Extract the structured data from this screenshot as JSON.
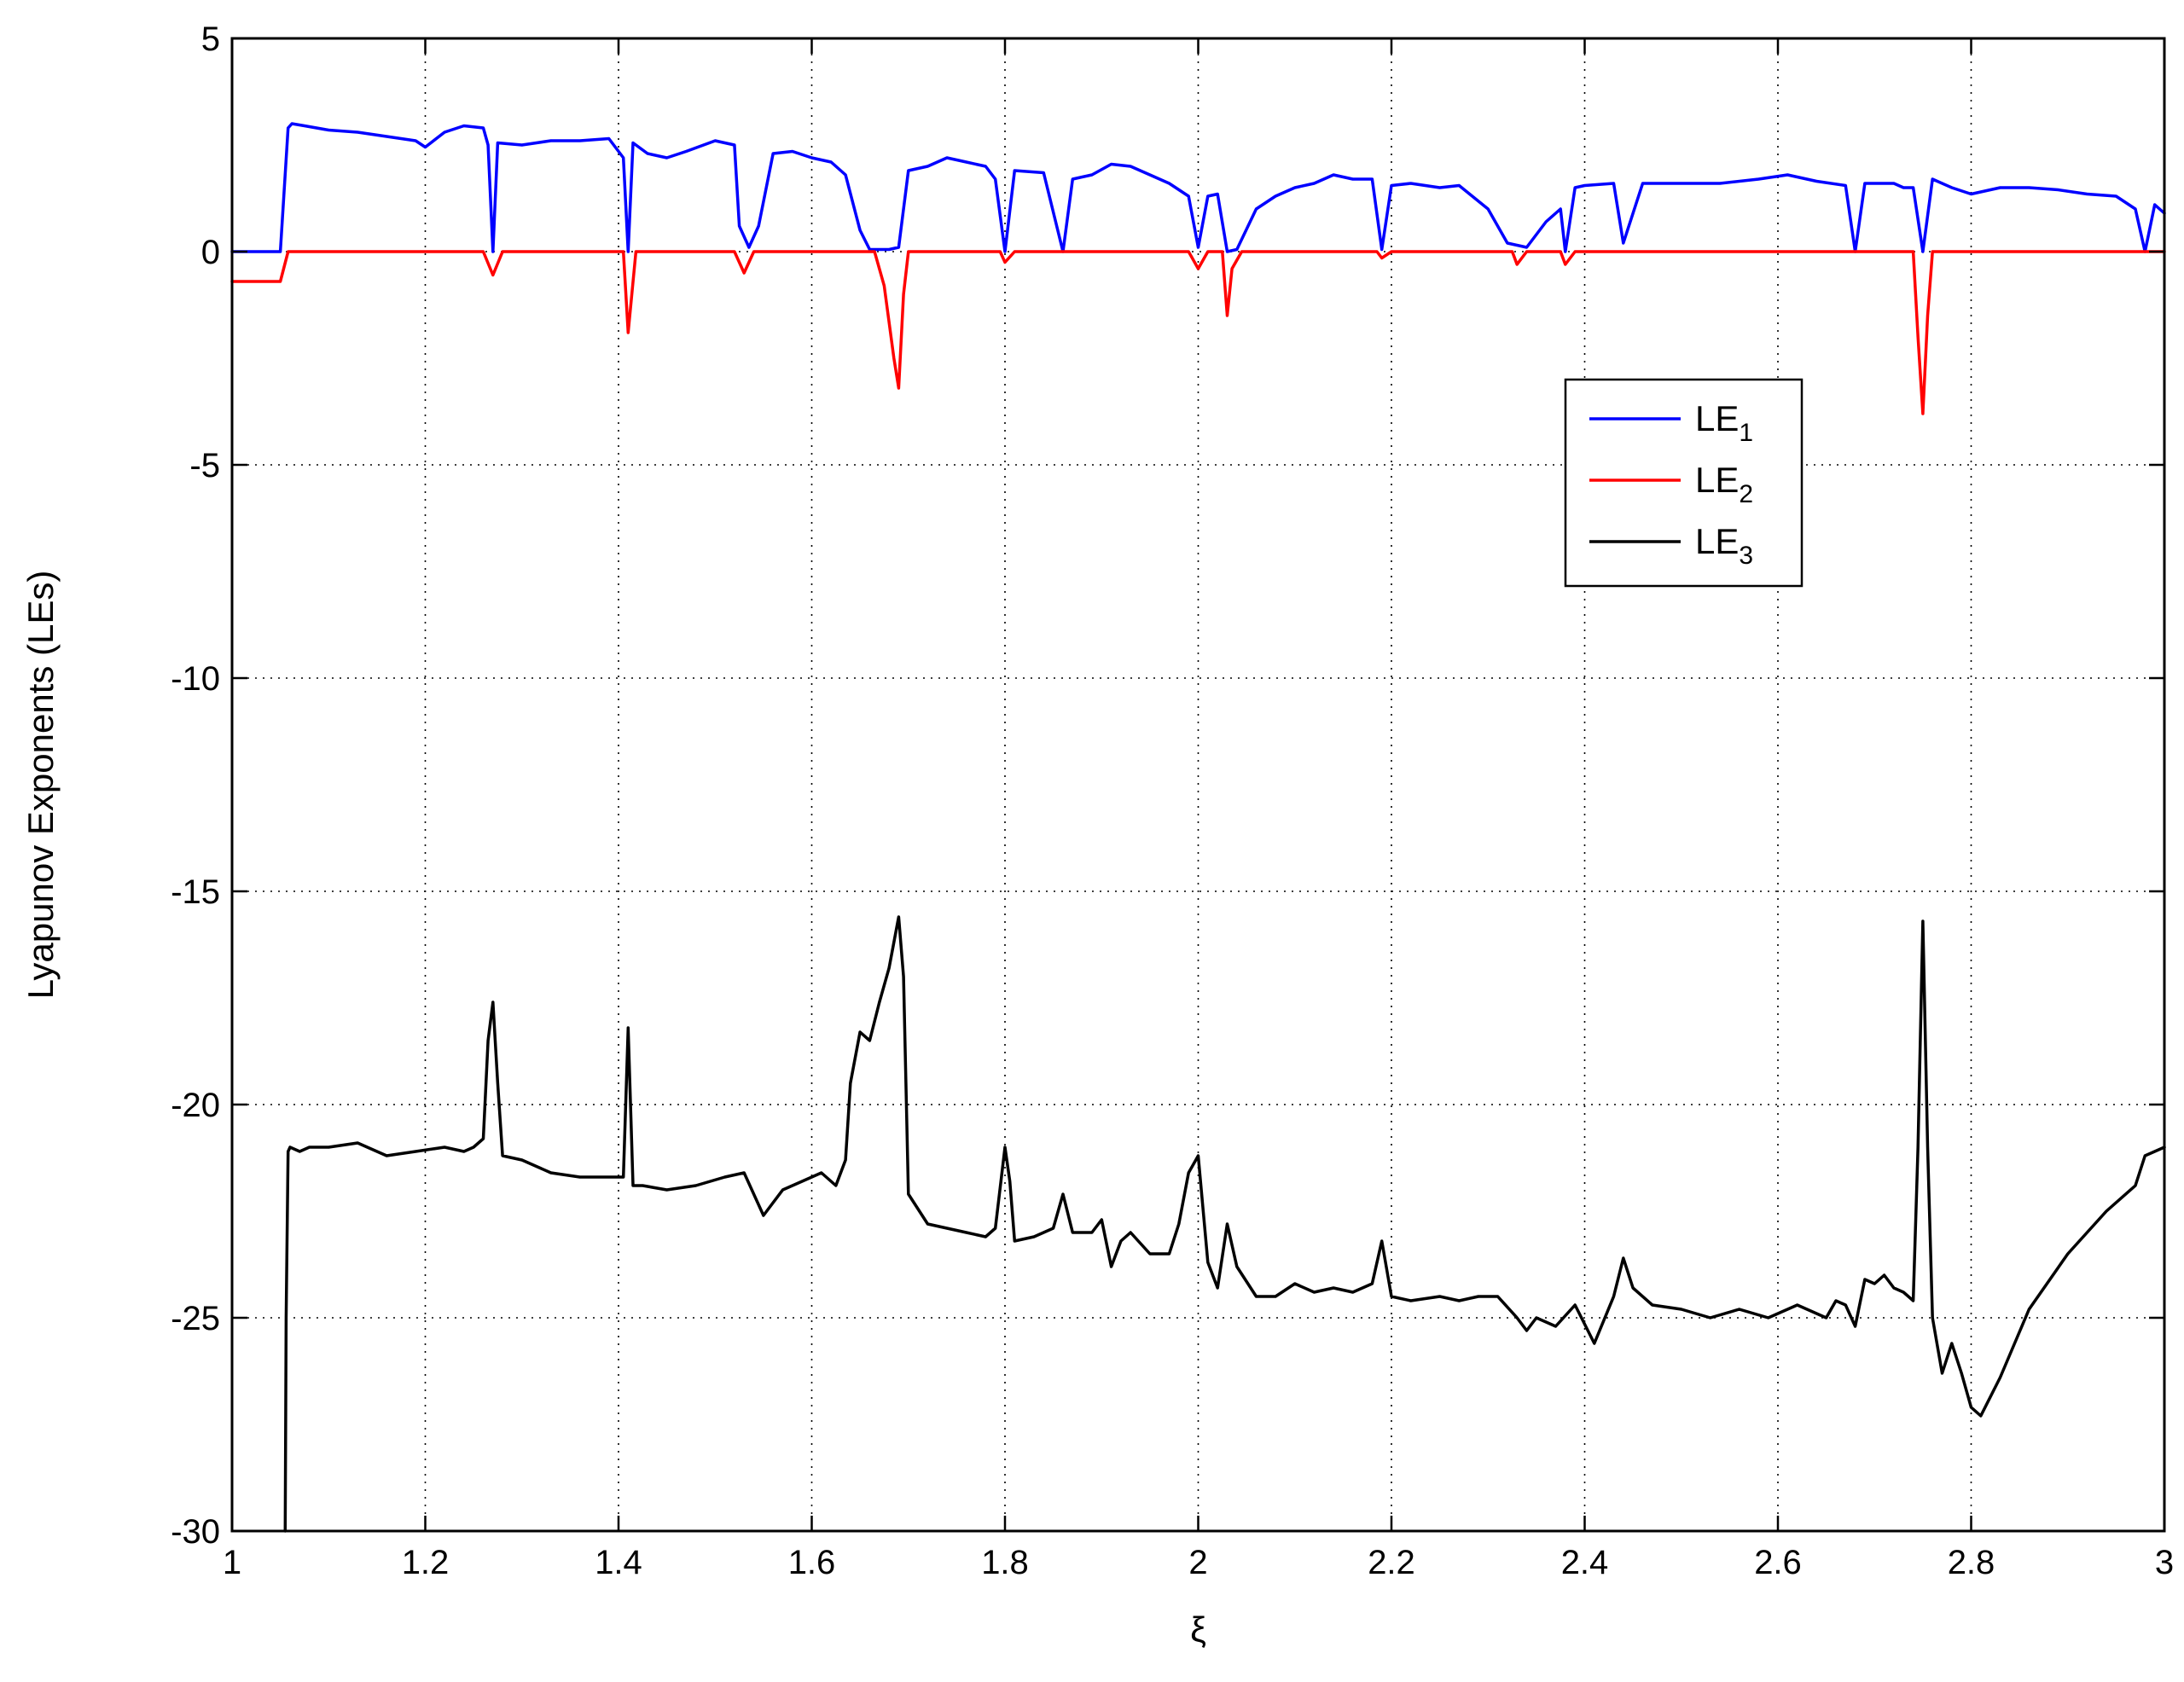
{
  "chart_data": {
    "type": "line",
    "title": "",
    "xlabel": "ξ",
    "ylabel": "Lyapunov Exponents (LEs)",
    "xlim": [
      1,
      3
    ],
    "ylim": [
      -30,
      5
    ],
    "grid": true,
    "legend_position": "upper-right (inside plot)",
    "xticks": [
      1,
      1.2,
      1.4,
      1.6,
      1.8,
      2,
      2.2,
      2.4,
      2.6,
      2.8,
      3
    ],
    "xtick_labels": [
      "1",
      "1.2",
      "1.4",
      "1.6",
      "1.8",
      "2",
      "2.2",
      "2.4",
      "2.6",
      "2.8",
      "3"
    ],
    "yticks": [
      5,
      0,
      -5,
      -10,
      -15,
      -20,
      -25,
      -30
    ],
    "ytick_labels": [
      "5",
      "0",
      "-5",
      "-10",
      "-15",
      "-20",
      "-25",
      "-30"
    ],
    "series": [
      {
        "name_base": "LE",
        "name_sub": "1",
        "color": "#0000ff",
        "x": [
          1.0,
          1.05,
          1.058,
          1.062,
          1.075,
          1.1,
          1.13,
          1.16,
          1.19,
          1.2,
          1.22,
          1.24,
          1.26,
          1.265,
          1.27,
          1.275,
          1.3,
          1.33,
          1.36,
          1.39,
          1.405,
          1.41,
          1.415,
          1.43,
          1.45,
          1.47,
          1.5,
          1.52,
          1.525,
          1.535,
          1.545,
          1.56,
          1.58,
          1.6,
          1.62,
          1.635,
          1.65,
          1.66,
          1.68,
          1.69,
          1.7,
          1.72,
          1.74,
          1.76,
          1.78,
          1.79,
          1.8,
          1.81,
          1.84,
          1.86,
          1.87,
          1.89,
          1.91,
          1.93,
          1.95,
          1.97,
          1.99,
          2.0,
          2.01,
          2.02,
          2.03,
          2.04,
          2.06,
          2.08,
          2.1,
          2.12,
          2.14,
          2.16,
          2.18,
          2.19,
          2.2,
          2.22,
          2.25,
          2.27,
          2.3,
          2.32,
          2.34,
          2.36,
          2.375,
          2.38,
          2.39,
          2.4,
          2.43,
          2.44,
          2.46,
          2.5,
          2.54,
          2.58,
          2.61,
          2.64,
          2.67,
          2.68,
          2.69,
          2.72,
          2.73,
          2.74,
          2.75,
          2.76,
          2.78,
          2.8,
          2.83,
          2.86,
          2.89,
          2.92,
          2.95,
          2.97,
          2.98,
          2.99,
          3.0
        ],
        "y": [
          0,
          0,
          2.9,
          3.0,
          2.95,
          2.85,
          2.8,
          2.7,
          2.6,
          2.45,
          2.8,
          2.95,
          2.9,
          2.5,
          0,
          2.55,
          2.5,
          2.6,
          2.6,
          2.65,
          2.2,
          0,
          2.55,
          2.3,
          2.2,
          2.35,
          2.6,
          2.5,
          0.6,
          0.1,
          0.6,
          2.3,
          2.35,
          2.2,
          2.1,
          1.8,
          0.5,
          0.05,
          0.05,
          0.1,
          1.9,
          2.0,
          2.2,
          2.1,
          2.0,
          1.7,
          0,
          1.9,
          1.85,
          0,
          1.7,
          1.8,
          2.05,
          2.0,
          1.8,
          1.6,
          1.3,
          0.1,
          1.3,
          1.35,
          0,
          0.05,
          1.0,
          1.3,
          1.5,
          1.6,
          1.8,
          1.7,
          1.7,
          0.05,
          1.55,
          1.6,
          1.5,
          1.55,
          1.0,
          0.2,
          0.1,
          0.7,
          1.0,
          0,
          1.5,
          1.55,
          1.6,
          0.2,
          1.6,
          1.6,
          1.6,
          1.7,
          1.8,
          1.65,
          1.55,
          0,
          1.6,
          1.6,
          1.5,
          1.5,
          0,
          1.7,
          1.5,
          1.35,
          1.5,
          1.5,
          1.45,
          1.35,
          1.3,
          1.0,
          0,
          1.1,
          0.9
        ]
      },
      {
        "name_base": "LE",
        "name_sub": "2",
        "color": "#ff0000",
        "x": [
          1.0,
          1.05,
          1.058,
          1.065,
          1.26,
          1.27,
          1.28,
          1.405,
          1.41,
          1.418,
          1.52,
          1.53,
          1.54,
          1.665,
          1.675,
          1.685,
          1.69,
          1.695,
          1.7,
          1.795,
          1.8,
          1.81,
          1.99,
          2.0,
          2.01,
          2.025,
          2.03,
          2.035,
          2.045,
          2.185,
          2.19,
          2.2,
          2.325,
          2.33,
          2.34,
          2.375,
          2.38,
          2.39,
          2.74,
          2.745,
          2.75,
          2.755,
          2.76,
          3.0
        ],
        "y": [
          -0.7,
          -0.7,
          0,
          0,
          0,
          -0.55,
          0,
          0,
          -1.9,
          0,
          0,
          -0.5,
          0,
          0,
          -0.8,
          -2.5,
          -3.2,
          -1.0,
          0,
          0,
          -0.25,
          0,
          0,
          -0.4,
          0,
          0,
          -1.5,
          -0.4,
          0,
          0,
          -0.15,
          0,
          0,
          -0.3,
          0,
          0,
          -0.3,
          0,
          0,
          -2.0,
          -3.8,
          -1.5,
          0,
          0
        ]
      },
      {
        "name_base": "LE",
        "name_sub": "3",
        "color": "#000000",
        "x": [
          1.055,
          1.056,
          1.058,
          1.06,
          1.07,
          1.08,
          1.1,
          1.13,
          1.16,
          1.19,
          1.22,
          1.24,
          1.25,
          1.26,
          1.265,
          1.27,
          1.275,
          1.28,
          1.3,
          1.33,
          1.36,
          1.39,
          1.405,
          1.41,
          1.415,
          1.425,
          1.45,
          1.48,
          1.51,
          1.53,
          1.55,
          1.57,
          1.59,
          1.61,
          1.625,
          1.635,
          1.64,
          1.65,
          1.66,
          1.67,
          1.68,
          1.69,
          1.695,
          1.7,
          1.72,
          1.74,
          1.76,
          1.78,
          1.79,
          1.8,
          1.805,
          1.81,
          1.83,
          1.85,
          1.86,
          1.87,
          1.89,
          1.9,
          1.91,
          1.92,
          1.93,
          1.95,
          1.97,
          1.98,
          1.99,
          2.0,
          2.01,
          2.02,
          2.03,
          2.04,
          2.06,
          2.08,
          2.1,
          2.12,
          2.14,
          2.16,
          2.18,
          2.19,
          2.2,
          2.22,
          2.25,
          2.27,
          2.29,
          2.31,
          2.33,
          2.34,
          2.35,
          2.37,
          2.39,
          2.41,
          2.43,
          2.44,
          2.45,
          2.47,
          2.5,
          2.53,
          2.56,
          2.59,
          2.62,
          2.65,
          2.66,
          2.67,
          2.68,
          2.69,
          2.7,
          2.71,
          2.72,
          2.73,
          2.74,
          2.745,
          2.75,
          2.755,
          2.76,
          2.77,
          2.78,
          2.79,
          2.8,
          2.81,
          2.83,
          2.86,
          2.9,
          2.94,
          2.97,
          2.98,
          3.0
        ],
        "y": [
          -30,
          -25,
          -21.1,
          -21.0,
          -21.1,
          -21.0,
          -21.0,
          -20.9,
          -21.2,
          -21.1,
          -21.0,
          -21.1,
          -21.0,
          -20.8,
          -18.5,
          -17.6,
          -19.5,
          -21.2,
          -21.3,
          -21.6,
          -21.7,
          -21.7,
          -21.7,
          -18.2,
          -21.9,
          -21.9,
          -22.0,
          -21.9,
          -21.7,
          -21.6,
          -22.6,
          -22.0,
          -21.8,
          -21.6,
          -21.9,
          -21.3,
          -19.5,
          -18.3,
          -18.5,
          -17.6,
          -16.8,
          -15.6,
          -17.0,
          -22.1,
          -22.8,
          -22.9,
          -23.0,
          -23.1,
          -22.9,
          -21.0,
          -21.8,
          -23.2,
          -23.1,
          -22.9,
          -22.1,
          -23.0,
          -23.0,
          -22.7,
          -23.8,
          -23.2,
          -23.0,
          -23.5,
          -23.5,
          -22.8,
          -21.6,
          -21.2,
          -23.7,
          -24.3,
          -22.8,
          -23.8,
          -24.5,
          -24.5,
          -24.2,
          -24.4,
          -24.3,
          -24.4,
          -24.2,
          -23.2,
          -24.5,
          -24.6,
          -24.5,
          -24.6,
          -24.5,
          -24.5,
          -25.0,
          -25.3,
          -25.0,
          -25.2,
          -24.7,
          -25.6,
          -24.5,
          -23.6,
          -24.3,
          -24.7,
          -24.8,
          -25.0,
          -24.8,
          -25.0,
          -24.7,
          -25.0,
          -24.6,
          -24.7,
          -25.2,
          -24.1,
          -24.2,
          -24.0,
          -24.3,
          -24.4,
          -24.6,
          -21.0,
          -15.7,
          -21.0,
          -25.0,
          -26.3,
          -25.6,
          -26.3,
          -27.1,
          -27.3,
          -26.4,
          -24.8,
          -23.5,
          -22.5,
          -21.9,
          -21.2,
          -21.0
        ]
      }
    ]
  }
}
